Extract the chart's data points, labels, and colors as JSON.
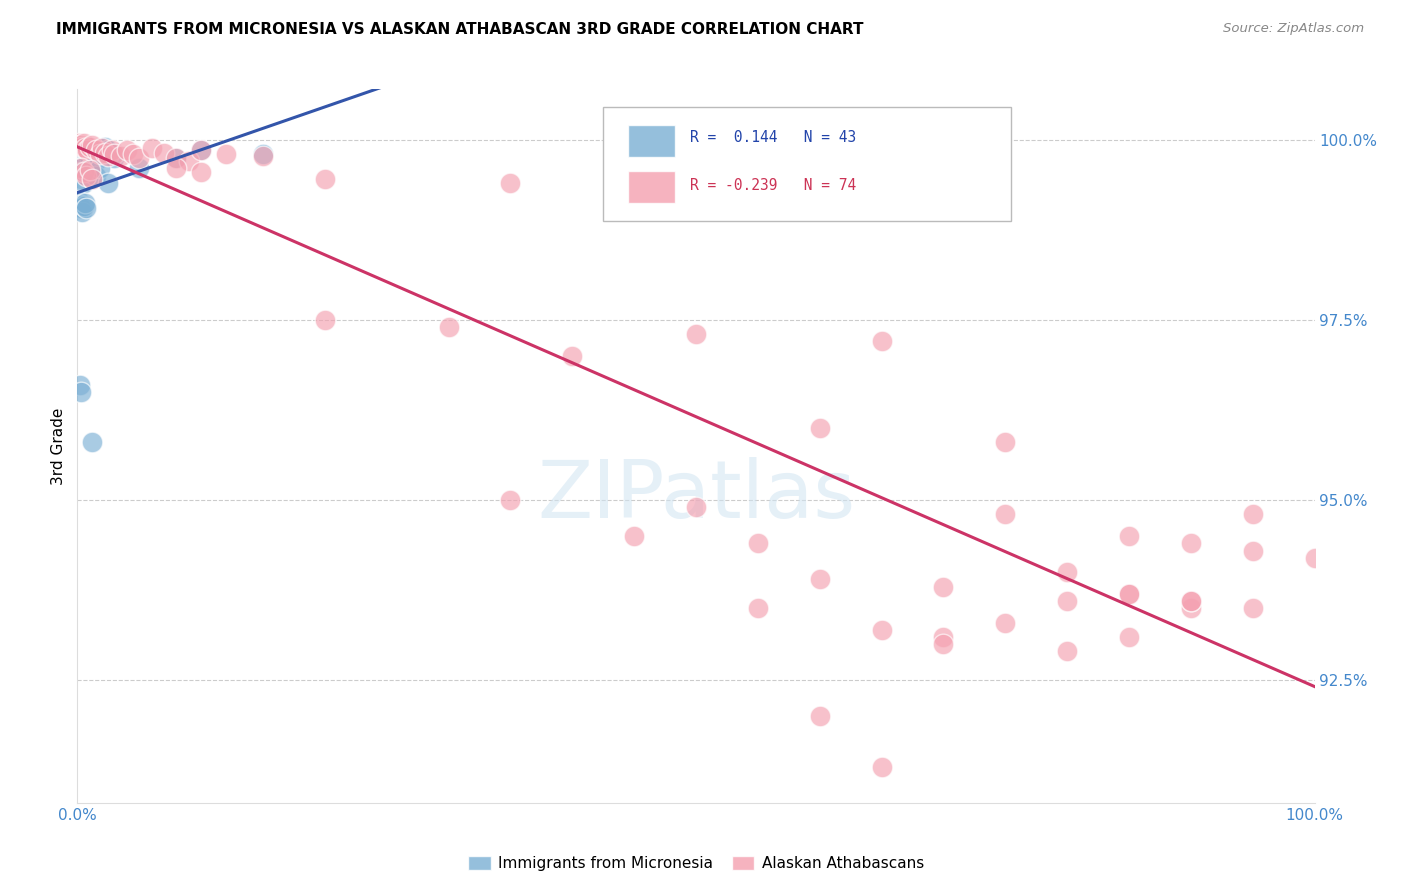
{
  "title": "IMMIGRANTS FROM MICRONESIA VS ALASKAN ATHABASCAN 3RD GRADE CORRELATION CHART",
  "source": "Source: ZipAtlas.com",
  "ylabel": "3rd Grade",
  "y_tick_labels": [
    "92.5%",
    "95.0%",
    "97.5%",
    "100.0%"
  ],
  "y_tick_values": [
    0.925,
    0.95,
    0.975,
    1.0
  ],
  "x_min": 0.0,
  "x_max": 1.0,
  "y_min": 0.908,
  "y_max": 1.007,
  "legend_blue_label": "R =  0.144   N = 43",
  "legend_pink_label": "R = -0.239   N = 74",
  "blue_color": "#7BAFD4",
  "pink_color": "#F4A0B0",
  "blue_line_color": "#3355AA",
  "pink_line_color": "#CC3366",
  "blue_points_x": [
    0.001,
    0.002,
    0.003,
    0.004,
    0.005,
    0.006,
    0.007,
    0.008,
    0.009,
    0.01,
    0.012,
    0.015,
    0.018,
    0.02,
    0.022,
    0.025,
    0.028,
    0.03,
    0.002,
    0.004,
    0.006,
    0.003,
    0.005,
    0.008,
    0.01,
    0.012,
    0.015,
    0.018,
    0.001,
    0.002,
    0.003,
    0.004,
    0.005,
    0.006,
    0.007,
    0.012,
    0.025,
    0.05,
    0.08,
    0.1,
    0.15,
    0.002,
    0.003
  ],
  "blue_points_y": [
    0.999,
    0.9988,
    0.9992,
    0.9985,
    0.998,
    0.9978,
    0.9982,
    0.999,
    0.9975,
    0.9972,
    0.998,
    0.997,
    0.9985,
    0.9988,
    0.999,
    0.9985,
    0.998,
    0.9975,
    0.996,
    0.9955,
    0.995,
    0.9945,
    0.994,
    0.9955,
    0.996,
    0.9945,
    0.995,
    0.996,
    0.9915,
    0.991,
    0.9905,
    0.99,
    0.9908,
    0.9912,
    0.9905,
    0.958,
    0.994,
    0.996,
    0.9975,
    0.9985,
    0.998,
    0.966,
    0.965
  ],
  "pink_points_x": [
    0.001,
    0.002,
    0.003,
    0.004,
    0.005,
    0.006,
    0.008,
    0.01,
    0.012,
    0.015,
    0.018,
    0.02,
    0.022,
    0.025,
    0.028,
    0.03,
    0.035,
    0.04,
    0.045,
    0.05,
    0.06,
    0.07,
    0.08,
    0.09,
    0.1,
    0.12,
    0.15,
    0.003,
    0.005,
    0.007,
    0.01,
    0.012,
    0.08,
    0.1,
    0.2,
    0.35,
    0.5,
    0.2,
    0.3,
    0.5,
    0.65,
    0.4,
    0.6,
    0.75,
    0.35,
    0.5,
    0.45,
    0.55,
    0.65,
    0.7,
    0.6,
    0.65,
    0.7,
    0.75,
    0.8,
    0.85,
    0.9,
    0.8,
    0.85,
    0.9,
    0.95,
    1.0,
    0.6,
    0.7,
    0.75,
    0.85,
    0.9,
    0.95,
    0.55,
    0.8,
    0.85,
    0.9,
    0.95
  ],
  "pink_points_y": [
    0.9995,
    0.9993,
    0.9992,
    0.999,
    0.9995,
    0.9988,
    0.9985,
    0.999,
    0.9992,
    0.9985,
    0.998,
    0.9988,
    0.9982,
    0.9978,
    0.9985,
    0.998,
    0.9978,
    0.9985,
    0.998,
    0.9975,
    0.9988,
    0.9982,
    0.9975,
    0.997,
    0.9985,
    0.998,
    0.9978,
    0.996,
    0.9955,
    0.995,
    0.9958,
    0.9945,
    0.996,
    0.9955,
    0.9945,
    0.994,
    0.9935,
    0.975,
    0.974,
    0.973,
    0.972,
    0.97,
    0.96,
    0.958,
    0.95,
    0.949,
    0.945,
    0.944,
    0.932,
    0.931,
    0.92,
    0.913,
    0.93,
    0.933,
    0.929,
    0.931,
    0.935,
    0.94,
    0.945,
    0.944,
    0.943,
    0.942,
    0.939,
    0.938,
    0.948,
    0.937,
    0.936,
    0.948,
    0.935,
    0.936,
    0.937,
    0.936,
    0.935
  ],
  "watermark_text": "ZIPatlas",
  "grid_color": "#CCCCCC",
  "legend_items_bottom": [
    "Immigrants from Micronesia",
    "Alaskan Athabascans"
  ]
}
